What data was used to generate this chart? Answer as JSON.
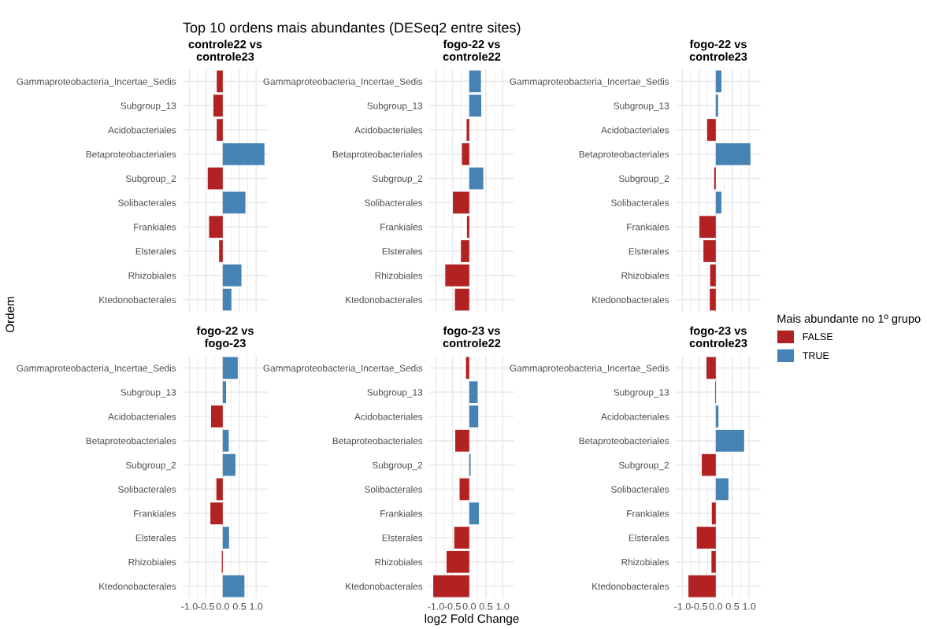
{
  "chart_data": [
    {
      "type": "bar",
      "orientation": "horizontal",
      "title": "Top 10 ordens mais abundantes (DESeq2 entre sites)",
      "subtitle": "controle22 vs\ncontrole23",
      "ylabel": "Ordem",
      "legend_title": "Mais abundante no 1º grupo",
      "legend": "right",
      "categories": [
        "Gammaproteobacteria_Incertae_Sedis",
        "Subgroup_13",
        "Acidobacteriales",
        "Betaproteobacteriales",
        "Subgroup_2",
        "Solibacterales",
        "Frankiales",
        "Elsterales",
        "Rhizobiales",
        "Ktedonobacterales"
      ],
      "series": [
        {
          "name": "FALSE",
          "color": "#b22222",
          "values": [
            -0.18,
            -0.28,
            -0.18,
            null,
            -0.45,
            null,
            -0.41,
            -0.11,
            null,
            null
          ]
        },
        {
          "name": "TRUE",
          "color": "#4682b4",
          "values": [
            null,
            null,
            null,
            1.25,
            null,
            0.68,
            null,
            null,
            0.56,
            0.26
          ]
        }
      ],
      "xlim": [
        -1.2,
        1.35
      ],
      "xticks": [
        -1,
        -0.5,
        0,
        0.5,
        1
      ],
      "tick_labels": "y",
      "grid": true
    },
    {
      "type": "bar",
      "orientation": "horizontal",
      "subtitle": "fogo-22 vs\ncontrole22",
      "categories": [
        "Gammaproteobacteria_Incertae_Sedis",
        "Subgroup_13",
        "Acidobacteriales",
        "Betaproteobacteriales",
        "Subgroup_2",
        "Solibacterales",
        "Frankiales",
        "Elsterales",
        "Rhizobiales",
        "Ktedonobacterales"
      ],
      "series": [
        {
          "color": "#b22222",
          "values": [
            null,
            null,
            -0.08,
            -0.22,
            null,
            -0.49,
            -0.07,
            -0.25,
            -0.72,
            -0.43
          ]
        },
        {
          "color": "#4682b4",
          "values": [
            0.35,
            0.36,
            null,
            null,
            0.42,
            null,
            null,
            null,
            null,
            null
          ]
        }
      ],
      "xlim": [
        -1.2,
        1.35
      ],
      "xticks": [
        -1,
        -0.5,
        0,
        0.5,
        1
      ],
      "tick_labels": "y",
      "grid": true
    },
    {
      "type": "bar",
      "orientation": "horizontal",
      "subtitle": "fogo-22 vs\ncontrole23",
      "categories": [
        "Gammaproteobacteria_Incertae_Sedis",
        "Subgroup_13",
        "Acidobacteriales",
        "Betaproteobacteriales",
        "Subgroup_2",
        "Solibacterales",
        "Frankiales",
        "Elsterales",
        "Rhizobiales",
        "Ktedonobacterales"
      ],
      "series": [
        {
          "color": "#b22222",
          "values": [
            null,
            null,
            -0.26,
            null,
            -0.05,
            null,
            -0.49,
            -0.37,
            -0.17,
            -0.18
          ]
        },
        {
          "color": "#4682b4",
          "values": [
            0.17,
            0.07,
            null,
            1.04,
            null,
            0.17,
            null,
            null,
            null,
            null
          ]
        }
      ],
      "xlim": [
        -1.2,
        1.35
      ],
      "xticks": [
        -1,
        -0.5,
        0,
        0.5,
        1
      ],
      "tick_labels": "y",
      "grid": true
    },
    {
      "type": "bar",
      "orientation": "horizontal",
      "subtitle": "fogo-22 vs\nfogo-23",
      "categories": [
        "Gammaproteobacteria_Incertae_Sedis",
        "Subgroup_13",
        "Acidobacteriales",
        "Betaproteobacteriales",
        "Subgroup_2",
        "Solibacterales",
        "Frankiales",
        "Elsterales",
        "Rhizobiales",
        "Ktedonobacterales"
      ],
      "series": [
        {
          "color": "#b22222",
          "values": [
            null,
            null,
            -0.35,
            null,
            null,
            -0.19,
            -0.37,
            null,
            -0.03,
            null
          ]
        },
        {
          "color": "#4682b4",
          "values": [
            0.45,
            0.1,
            null,
            0.18,
            0.38,
            null,
            null,
            0.19,
            null,
            0.65
          ]
        }
      ],
      "xlim": [
        -1.2,
        1.35
      ],
      "xticks": [
        {
          "value": -1,
          "label": "-1.0"
        },
        {
          "value": -0.5,
          "label": "-0.5"
        },
        {
          "value": 0,
          "label": "0.0"
        },
        {
          "value": 0.5,
          "label": "0.5"
        },
        {
          "value": 1,
          "label": "1.0"
        }
      ],
      "grid": true
    },
    {
      "type": "bar",
      "orientation": "horizontal",
      "subtitle": "fogo-23 vs\ncontrole22",
      "xlabel": "log2 Fold Change",
      "categories": [
        "Gammaproteobacteria_Incertae_Sedis",
        "Subgroup_13",
        "Acidobacteriales",
        "Betaproteobacteriales",
        "Subgroup_2",
        "Solibacterales",
        "Frankiales",
        "Elsterales",
        "Rhizobiales",
        "Ktedonobacterales"
      ],
      "series": [
        {
          "color": "#b22222",
          "values": [
            -0.1,
            null,
            null,
            -0.42,
            null,
            -0.29,
            null,
            -0.45,
            -0.68,
            -1.08
          ]
        },
        {
          "color": "#4682b4",
          "values": [
            null,
            0.25,
            0.27,
            null,
            0.04,
            null,
            0.29,
            null,
            null,
            null
          ]
        }
      ],
      "xlim": [
        -1.2,
        1.35
      ],
      "xticks": [
        {
          "value": -1,
          "label": "-1.0"
        },
        {
          "value": -0.5,
          "label": "-0.5"
        },
        {
          "value": 0,
          "label": "0.0"
        },
        {
          "value": 0.5,
          "label": "0.5"
        },
        {
          "value": 1,
          "label": "1.0"
        }
      ],
      "grid": true
    },
    {
      "type": "bar",
      "orientation": "horizontal",
      "subtitle": "fogo-23 vs\ncontrole23",
      "categories": [
        "Gammaproteobacteria_Incertae_Sedis",
        "Subgroup_13",
        "Acidobacteriales",
        "Betaproteobacteriales",
        "Subgroup_2",
        "Solibacterales",
        "Frankiales",
        "Elsterales",
        "Rhizobiales",
        "Ktedonobacterales"
      ],
      "series": [
        {
          "color": "#b22222",
          "values": [
            -0.28,
            -0.02,
            null,
            null,
            -0.42,
            null,
            -0.12,
            -0.57,
            -0.13,
            -0.82
          ]
        },
        {
          "color": "#4682b4",
          "values": [
            null,
            null,
            0.08,
            0.85,
            null,
            0.38,
            null,
            null,
            null,
            null
          ]
        }
      ],
      "xlim": [
        -1.2,
        1.35
      ],
      "xticks": [
        {
          "value": -1,
          "label": "-1.0"
        },
        {
          "value": -0.5,
          "label": "-0.5"
        },
        {
          "value": 0,
          "label": "0.0"
        },
        {
          "value": 0.5,
          "label": "0.5"
        },
        {
          "value": 1,
          "label": "1.0"
        }
      ],
      "grid": true
    }
  ]
}
